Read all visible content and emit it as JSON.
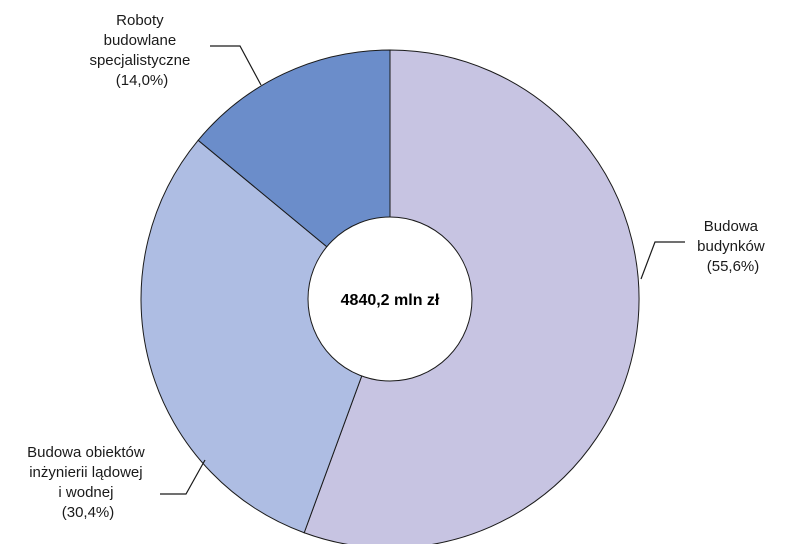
{
  "chart_data": {
    "type": "pie",
    "variant": "donut",
    "center_label": "4840,2 mln zł",
    "slices": [
      {
        "name": "Budowa budynków",
        "label_lines": [
          "Budowa",
          "budynków"
        ],
        "percent_label": "(55,6%)",
        "value": 55.6,
        "color": "#c7c4e2"
      },
      {
        "name": "Budowa obiektów inżynierii lądowej i wodnej",
        "label_lines": [
          "Budowa obiektów",
          "inżynierii lądowej",
          "i wodnej"
        ],
        "percent_label": "(30,4%)",
        "value": 30.4,
        "color": "#aebde3"
      },
      {
        "name": "Roboty budowlane specjalistyczne",
        "label_lines": [
          "Roboty",
          "budowlane",
          "specjalistyczne"
        ],
        "percent_label": "(14,0%)",
        "value": 14.0,
        "color": "#6b8dca"
      }
    ],
    "start_angle_deg": 0,
    "direction": "clockwise",
    "legend": "none"
  }
}
